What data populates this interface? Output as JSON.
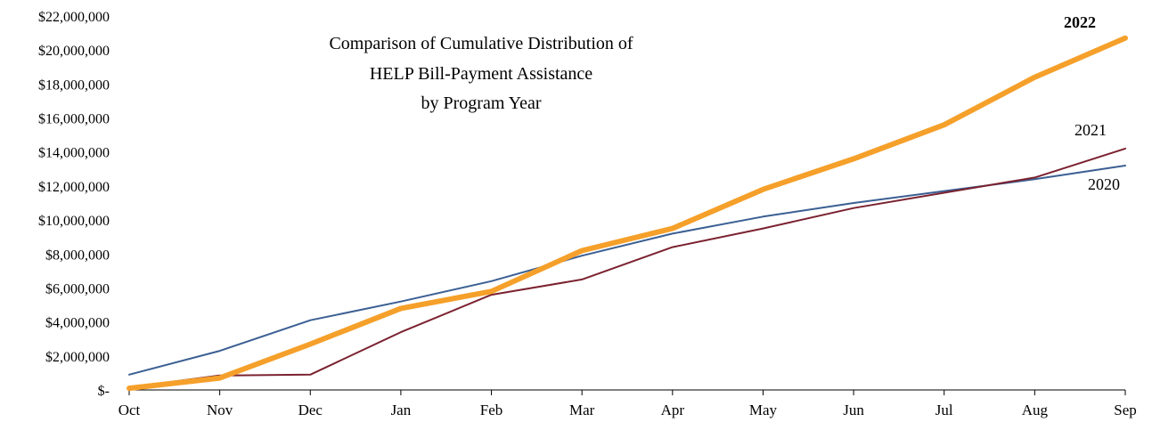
{
  "chart_data": {
    "type": "line",
    "title": "Comparison of Cumulative Distribution of HELP Bill-Payment Assistance by Program Year",
    "title_lines": [
      "Comparison of Cumulative Distribution of",
      "HELP Bill-Payment Assistance",
      "by Program Year"
    ],
    "xlabel": "",
    "ylabel": "",
    "categories": [
      "Oct",
      "Nov",
      "Dec",
      "Jan",
      "Feb",
      "Mar",
      "Apr",
      "May",
      "Jun",
      "Jul",
      "Aug",
      "Sep"
    ],
    "ylim": [
      0,
      22000000
    ],
    "y_ticks": [
      0,
      2000000,
      4000000,
      6000000,
      8000000,
      10000000,
      12000000,
      14000000,
      16000000,
      18000000,
      20000000,
      22000000
    ],
    "y_tick_labels": [
      "$-",
      "$2,000,000",
      "$4,000,000",
      "$6,000,000",
      "$8,000,000",
      "$10,000,000",
      "$12,000,000",
      "$14,000,000",
      "$16,000,000",
      "$18,000,000",
      "$20,000,000",
      "$22,000,000"
    ],
    "grid": false,
    "legend": "inline labels at right end of lines",
    "series": [
      {
        "name": "2020",
        "color": "#3b5f93",
        "values": [
          900000,
          2300000,
          4100000,
          5200000,
          6400000,
          7900000,
          9200000,
          10200000,
          11000000,
          11700000,
          12400000,
          13200000
        ]
      },
      {
        "name": "2021",
        "color": "#7b2230",
        "values": [
          150000,
          850000,
          900000,
          3400000,
          5600000,
          6500000,
          8400000,
          9500000,
          10700000,
          11600000,
          12500000,
          14200000
        ]
      },
      {
        "name": "2022",
        "color": "#f5a02a",
        "bold": true,
        "values": [
          100000,
          700000,
          2700000,
          4800000,
          5800000,
          8200000,
          9500000,
          11800000,
          13600000,
          15600000,
          18400000,
          20700000
        ]
      }
    ]
  }
}
